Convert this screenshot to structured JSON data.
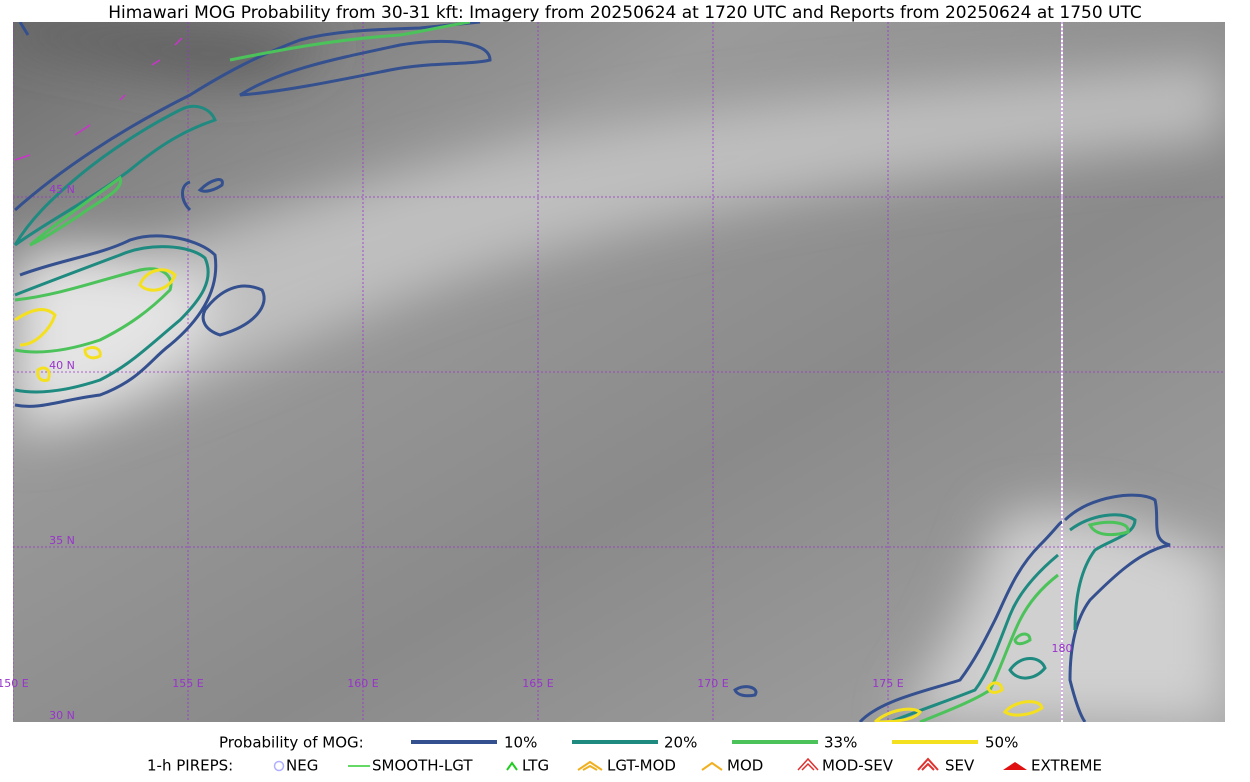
{
  "title": "Himawari MOG Probability from 30-31 kft: Imagery from 20250624 at 1720 UTC and Reports from 20250624 at 1750 UTC",
  "map": {
    "latitudes": [
      "45 N",
      "40 N",
      "35 N",
      "30 N"
    ],
    "longitudes": [
      "150 E",
      "155 E",
      "160 E",
      "165 E",
      "170 E",
      "175 E",
      "180"
    ]
  },
  "legend": {
    "probability": {
      "label": "Probability of MOG:",
      "items": [
        "10%",
        "20%",
        "33%",
        "50%"
      ]
    },
    "pireps": {
      "label": "1-h PIREPS:",
      "items": [
        "NEG",
        "SMOOTH-LGT",
        "LTG",
        "LGT-MOD",
        "MOD",
        "MOD-SEV",
        "SEV",
        "EXTREME"
      ]
    }
  }
}
